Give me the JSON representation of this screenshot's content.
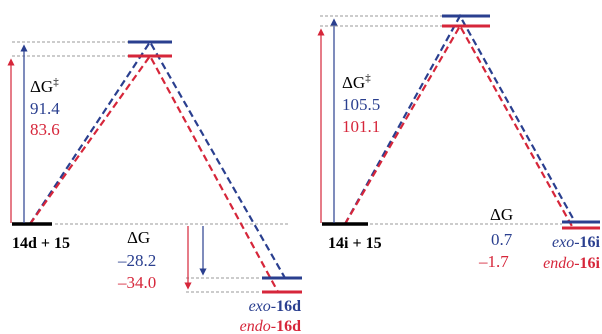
{
  "colors": {
    "exo": "#2a3f8f",
    "endo": "#d6263a",
    "reference": "#000000",
    "guide": "#9a9a9a"
  },
  "left_panel": {
    "reactant_label": "14d + 15",
    "barrier": {
      "symbol": "ΔG",
      "superscript": "‡",
      "exo_value": "91.4",
      "endo_value": "83.6"
    },
    "reaction": {
      "symbol": "ΔG",
      "exo_value": "–28.2",
      "endo_value": "–34.0"
    },
    "products": [
      {
        "prefix": "exo-",
        "compound": "16d"
      },
      {
        "prefix": "endo-",
        "compound": "16d"
      }
    ]
  },
  "right_panel": {
    "reactant_label": "14i + 15",
    "barrier": {
      "symbol": "ΔG",
      "superscript": "‡",
      "exo_value": "105.5",
      "endo_value": "101.1"
    },
    "reaction": {
      "symbol": "ΔG",
      "exo_value": "0.7",
      "endo_value": "–1.7"
    },
    "products": [
      {
        "prefix": "exo-",
        "compound": "16i"
      },
      {
        "prefix": "endo-",
        "compound": "16i"
      }
    ]
  }
}
